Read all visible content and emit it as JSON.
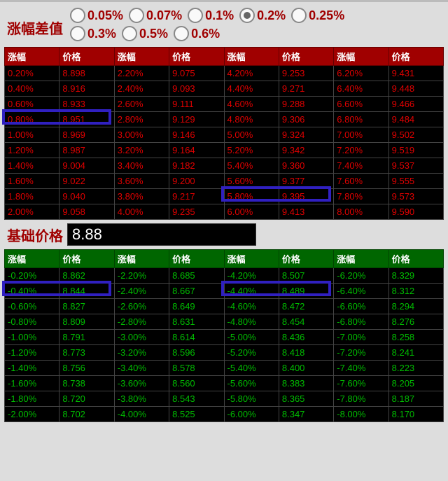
{
  "colors": {
    "page_bg": "#dddddd",
    "up_header_bg": "#a00000",
    "up_text": "#e00000",
    "down_header_bg": "#006600",
    "down_text": "#00bb00",
    "cell_bg": "#000000",
    "cell_border": "#444444",
    "title_text": "#a00000",
    "highlight_border": "#3020c0"
  },
  "step_selector": {
    "title": "涨幅差值",
    "options": [
      "0.05%",
      "0.07%",
      "0.1%",
      "0.2%",
      "0.25%",
      "0.3%",
      "0.5%",
      "0.6%"
    ],
    "selected_index": 3
  },
  "base_price": {
    "label": "基础价格",
    "value": "8.88"
  },
  "table_headers": {
    "pct": "涨幅",
    "price": "价格"
  },
  "up_table": {
    "rows": [
      [
        "0.20%",
        "8.898",
        "2.20%",
        "9.075",
        "4.20%",
        "9.253",
        "6.20%",
        "9.431"
      ],
      [
        "0.40%",
        "8.916",
        "2.40%",
        "9.093",
        "4.40%",
        "9.271",
        "6.40%",
        "9.448"
      ],
      [
        "0.60%",
        "8.933",
        "2.60%",
        "9.111",
        "4.60%",
        "9.288",
        "6.60%",
        "9.466"
      ],
      [
        "0.80%",
        "8.951",
        "2.80%",
        "9.129",
        "4.80%",
        "9.306",
        "6.80%",
        "9.484"
      ],
      [
        "1.00%",
        "8.969",
        "3.00%",
        "9.146",
        "5.00%",
        "9.324",
        "7.00%",
        "9.502"
      ],
      [
        "1.20%",
        "8.987",
        "3.20%",
        "9.164",
        "5.20%",
        "9.342",
        "7.20%",
        "9.519"
      ],
      [
        "1.40%",
        "9.004",
        "3.40%",
        "9.182",
        "5.40%",
        "9.360",
        "7.40%",
        "9.537"
      ],
      [
        "1.60%",
        "9.022",
        "3.60%",
        "9.200",
        "5.60%",
        "9.377",
        "7.60%",
        "9.555"
      ],
      [
        "1.80%",
        "9.040",
        "3.80%",
        "9.217",
        "5.80%",
        "9.395",
        "7.80%",
        "9.573"
      ],
      [
        "2.00%",
        "9.058",
        "4.00%",
        "9.235",
        "6.00%",
        "9.413",
        "8.00%",
        "9.590"
      ]
    ]
  },
  "down_table": {
    "rows": [
      [
        "-0.20%",
        "8.862",
        "-2.20%",
        "8.685",
        "-4.20%",
        "8.507",
        "-6.20%",
        "8.329"
      ],
      [
        "-0.40%",
        "8.844",
        "-2.40%",
        "8.667",
        "-4.40%",
        "8.489",
        "-6.40%",
        "8.312"
      ],
      [
        "-0.60%",
        "8.827",
        "-2.60%",
        "8.649",
        "-4.60%",
        "8.472",
        "-6.60%",
        "8.294"
      ],
      [
        "-0.80%",
        "8.809",
        "-2.80%",
        "8.631",
        "-4.80%",
        "8.454",
        "-6.80%",
        "8.276"
      ],
      [
        "-1.00%",
        "8.791",
        "-3.00%",
        "8.614",
        "-5.00%",
        "8.436",
        "-7.00%",
        "8.258"
      ],
      [
        "-1.20%",
        "8.773",
        "-3.20%",
        "8.596",
        "-5.20%",
        "8.418",
        "-7.20%",
        "8.241"
      ],
      [
        "-1.40%",
        "8.756",
        "-3.40%",
        "8.578",
        "-5.40%",
        "8.400",
        "-7.40%",
        "8.223"
      ],
      [
        "-1.60%",
        "8.738",
        "-3.60%",
        "8.560",
        "-5.60%",
        "8.383",
        "-7.60%",
        "8.205"
      ],
      [
        "-1.80%",
        "8.720",
        "-3.80%",
        "8.543",
        "-5.80%",
        "8.365",
        "-7.80%",
        "8.187"
      ],
      [
        "-2.00%",
        "8.702",
        "-4.00%",
        "8.525",
        "-6.00%",
        "8.347",
        "-8.00%",
        "8.170"
      ]
    ]
  },
  "highlights": [
    {
      "table": "up",
      "row": 3,
      "col_start": 0,
      "col_end": 1
    },
    {
      "table": "up",
      "row": 8,
      "col_start": 4,
      "col_end": 5
    },
    {
      "table": "down",
      "row": 1,
      "col_start": 0,
      "col_end": 1
    },
    {
      "table": "down",
      "row": 1,
      "col_start": 4,
      "col_end": 5
    }
  ]
}
